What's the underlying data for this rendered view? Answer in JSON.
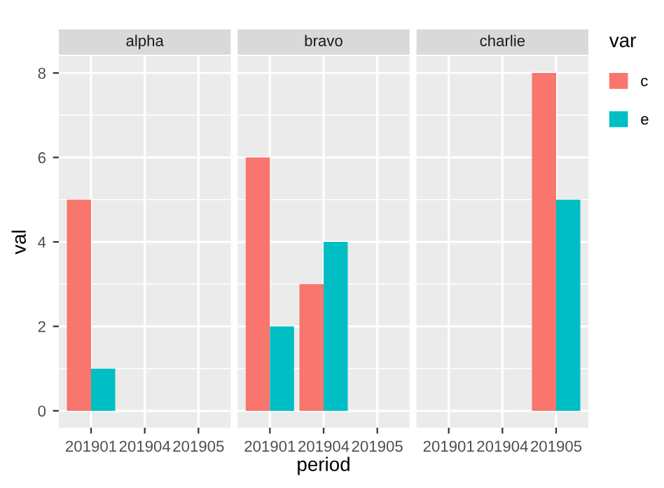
{
  "chart_data": [
    {
      "type": "bar",
      "title": "alpha",
      "ylabel": "val",
      "categories": [
        "201901",
        "201904",
        "201905"
      ],
      "series": [
        {
          "color": "#f8766d",
          "values": [
            5,
            null,
            null
          ]
        },
        {
          "color": "#00bfc4",
          "values": [
            1,
            null,
            null
          ]
        }
      ],
      "ylim": [
        -0.4,
        8.4
      ],
      "yticks": [
        0,
        2,
        4,
        6,
        8
      ],
      "grid": true
    },
    {
      "type": "bar",
      "title": "bravo",
      "xlabel": "period",
      "categories": [
        "201901",
        "201904",
        "201905"
      ],
      "series": [
        {
          "color": "#f8766d",
          "values": [
            6,
            3,
            null
          ]
        },
        {
          "color": "#00bfc4",
          "values": [
            2,
            4,
            null
          ]
        }
      ],
      "ylim": [
        -0.4,
        8.4
      ],
      "yticks": [
        0,
        2,
        4,
        6,
        8
      ],
      "grid": true,
      "tick_labels": "x"
    },
    {
      "type": "bar",
      "title": "charlie",
      "categories": [
        "201901",
        "201904",
        "201905"
      ],
      "series": [
        {
          "name": "c",
          "color": "#f8766d",
          "values": [
            null,
            null,
            8
          ]
        },
        {
          "name": "e",
          "color": "#00bfc4",
          "values": [
            null,
            null,
            5
          ]
        }
      ],
      "ylim": [
        -0.4,
        8.4
      ],
      "yticks": [
        0,
        2,
        4,
        6,
        8
      ],
      "grid": true,
      "tick_labels": "x",
      "legend": "right",
      "legend_title": "var"
    }
  ]
}
